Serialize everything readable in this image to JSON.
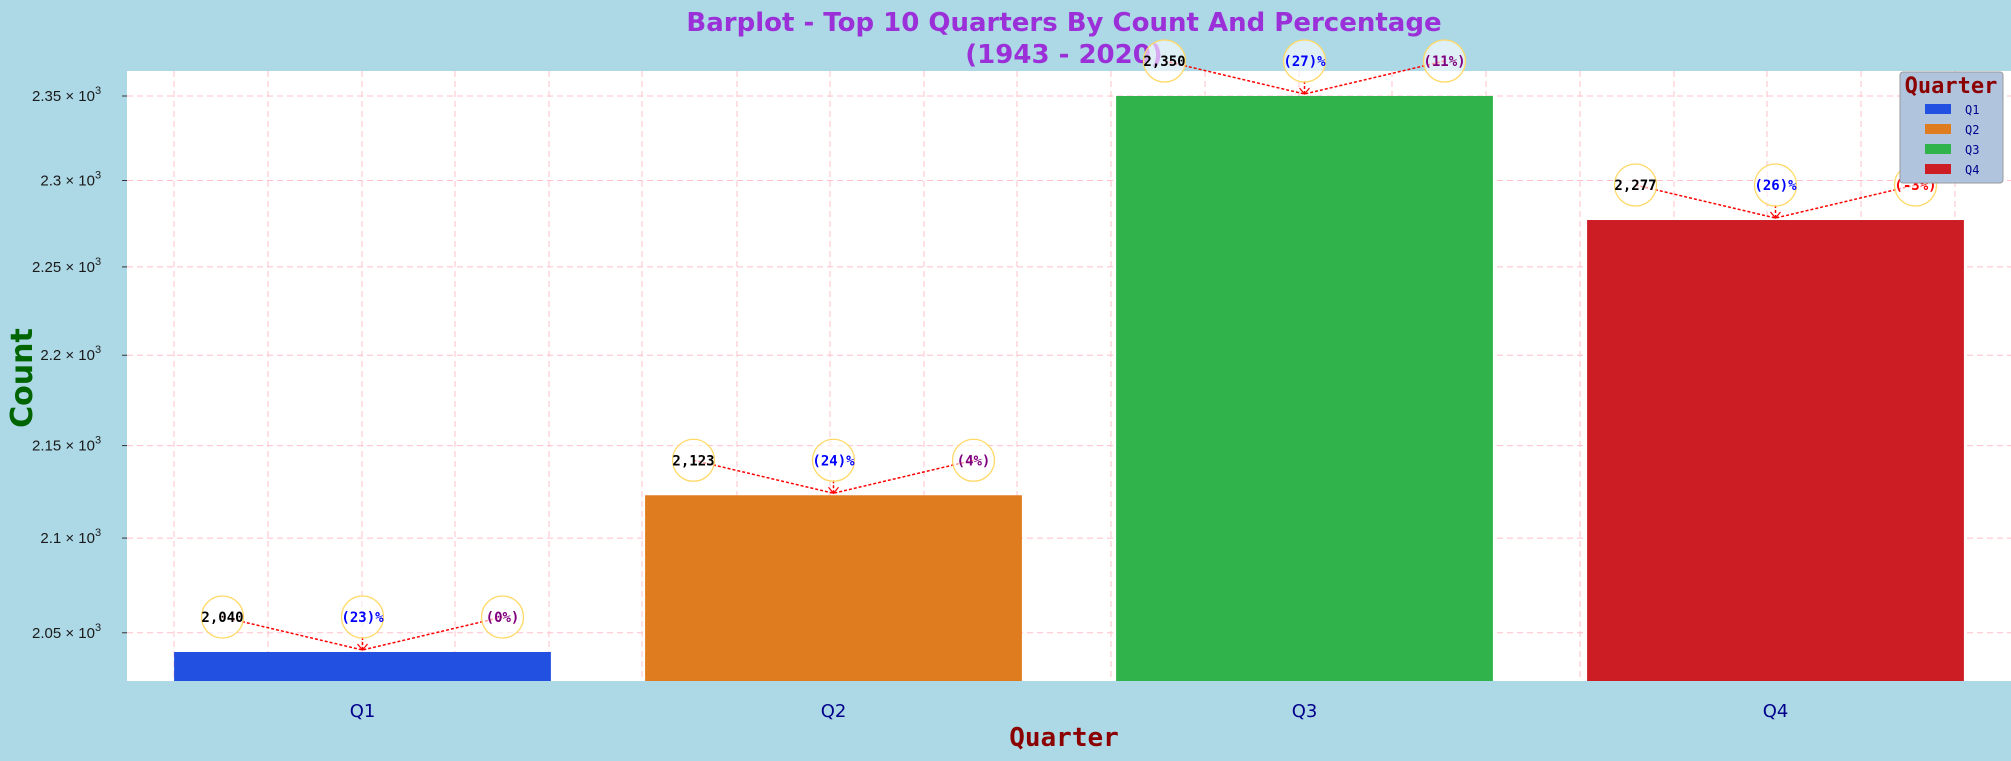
{
  "chart_data": {
    "type": "bar",
    "title": "Barplot - Top 10 Quarters By Count And Percentage",
    "subtitle": "(1943 - 2020)",
    "xlabel": "Quarter",
    "ylabel": "Count",
    "categories": [
      "Q1",
      "Q2",
      "Q3",
      "Q4"
    ],
    "values": [
      2040,
      2123,
      2350,
      2277
    ],
    "value_labels": [
      "2,040",
      "2,123",
      "2,350",
      "2,277"
    ],
    "percent_labels": [
      "(23)%",
      "(24)%",
      "(27)%",
      "(26)%"
    ],
    "change_labels": [
      "(0%)",
      "(4%)",
      "(11%)",
      "(-3%)"
    ],
    "colors": [
      "#2250e0",
      "#e07c20",
      "#2fb34a",
      "#cc1c24"
    ],
    "y_scale": "log",
    "ylim": [
      2025,
      2365
    ],
    "y_ticks": [
      2050,
      2100,
      2150,
      2200,
      2250,
      2300,
      2350
    ],
    "y_tick_labels": [
      {
        "base": "2.05 × 10",
        "exp": "3"
      },
      {
        "base": "2.1 × 10",
        "exp": "3"
      },
      {
        "base": "2.15 × 10",
        "exp": "3"
      },
      {
        "base": "2.2 × 10",
        "exp": "3"
      },
      {
        "base": "2.25 × 10",
        "exp": "3"
      },
      {
        "base": "2.3 × 10",
        "exp": "3"
      },
      {
        "base": "2.35 × 10",
        "exp": "3"
      }
    ],
    "grid": true,
    "legend": {
      "title": "Quarter",
      "placement": "top-right",
      "entries": [
        "Q1",
        "Q2",
        "Q3",
        "Q4"
      ]
    },
    "annotation_colors": {
      "value": "#000000",
      "percent": "#0000ff",
      "change_positive": "#800080",
      "change_negative": "#ff0000",
      "circle": "#ffd966",
      "arrow": "#ff0000"
    }
  }
}
